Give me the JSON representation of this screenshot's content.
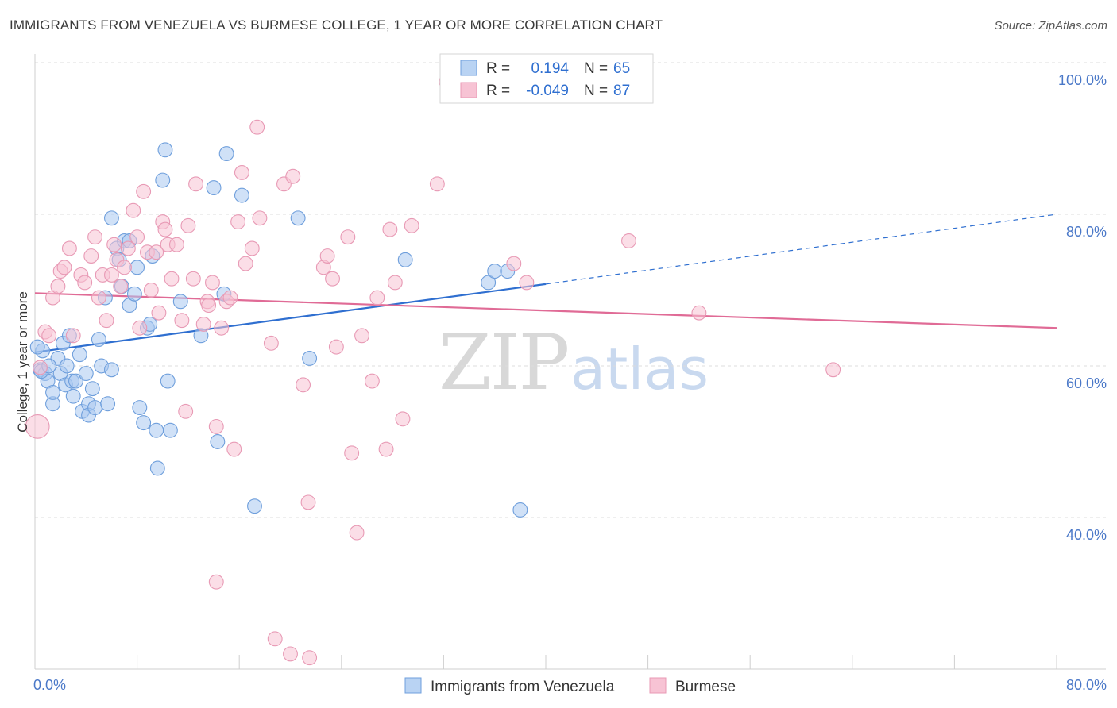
{
  "chart_data": {
    "type": "scatter",
    "title": "IMMIGRANTS FROM VENEZUELA VS BURMESE COLLEGE, 1 YEAR OR MORE CORRELATION CHART",
    "source": "Source: ZipAtlas.com",
    "xlabel": "",
    "ylabel": "College, 1 year or more",
    "xlim": [
      0,
      80
    ],
    "ylim": [
      20,
      100
    ],
    "x_tick_labels": [
      "0.0%",
      "80.0%"
    ],
    "y_tick_labels": [
      {
        "value": 100,
        "label": "100.0%"
      },
      {
        "value": 80,
        "label": "80.0%"
      },
      {
        "value": 60,
        "label": "60.0%"
      },
      {
        "value": 40,
        "label": "40.0%"
      }
    ],
    "legend_stats": [
      {
        "r_label": "R =",
        "r": "0.194",
        "n_label": "N =",
        "n": "65"
      },
      {
        "r_label": "R =",
        "r": "-0.049",
        "n_label": "N =",
        "n": "87"
      }
    ],
    "watermark": {
      "zip": "ZIP",
      "atlas": "atlas"
    },
    "series": [
      {
        "name": "Immigrants from Venezuela",
        "color": "#6f9fdc",
        "fill": "#a9c8f0",
        "trend": {
          "x0": 0,
          "y0": 61.8,
          "x1": 40,
          "y1": 70.8,
          "dash_to_x": 80,
          "dash_to_y": 80.0,
          "color": "#2f6fd0"
        },
        "points": [
          [
            0.4,
            59.5
          ],
          [
            0.6,
            62
          ],
          [
            0.8,
            59
          ],
          [
            1,
            58
          ],
          [
            1.4,
            55
          ],
          [
            1.4,
            56.5
          ],
          [
            1.8,
            61
          ],
          [
            2,
            59
          ],
          [
            2.2,
            63
          ],
          [
            2.4,
            57.5
          ],
          [
            2.7,
            64
          ],
          [
            2.9,
            58
          ],
          [
            3,
            56
          ],
          [
            3.2,
            58
          ],
          [
            3.5,
            61.5
          ],
          [
            3.7,
            54
          ],
          [
            4,
            59
          ],
          [
            4.2,
            55
          ],
          [
            4.2,
            53.5
          ],
          [
            4.5,
            57
          ],
          [
            4.7,
            54.5
          ],
          [
            5,
            63.5
          ],
          [
            5.2,
            60
          ],
          [
            5.5,
            69
          ],
          [
            5.7,
            55
          ],
          [
            6,
            59.5
          ],
          [
            6,
            79.5
          ],
          [
            6.4,
            75.5
          ],
          [
            6.6,
            74
          ],
          [
            6.8,
            70.5
          ],
          [
            7,
            76.5
          ],
          [
            7.4,
            76.5
          ],
          [
            7.4,
            68
          ],
          [
            7.8,
            69.5
          ],
          [
            8,
            73
          ],
          [
            8.2,
            54.5
          ],
          [
            8.5,
            52.5
          ],
          [
            8.8,
            65
          ],
          [
            9,
            65.5
          ],
          [
            9.2,
            74.5
          ],
          [
            9.5,
            51.5
          ],
          [
            9.6,
            46.5
          ],
          [
            10,
            84.5
          ],
          [
            10.2,
            88.5
          ],
          [
            10.6,
            51.5
          ],
          [
            10.4,
            58
          ],
          [
            11.4,
            68.5
          ],
          [
            13,
            64
          ],
          [
            14,
            83.5
          ],
          [
            14.3,
            50
          ],
          [
            14.8,
            69.5
          ],
          [
            15,
            88
          ],
          [
            16.2,
            82.5
          ],
          [
            17.2,
            41.5
          ],
          [
            20.6,
            79.5
          ],
          [
            21.5,
            61
          ],
          [
            29,
            74
          ],
          [
            35.5,
            71
          ],
          [
            36,
            72.5
          ],
          [
            37,
            72.5
          ],
          [
            38,
            41
          ],
          [
            0.2,
            62.5
          ],
          [
            0.5,
            59.3
          ],
          [
            1.1,
            60
          ],
          [
            2.5,
            60
          ]
        ],
        "sizes": [
          12,
          12,
          12,
          12,
          12,
          12,
          12,
          12,
          12,
          12,
          12,
          12,
          12,
          12,
          12,
          12,
          12,
          12,
          12,
          12,
          12,
          12,
          12,
          12,
          12,
          12,
          12,
          12,
          12,
          12,
          12,
          12,
          12,
          12,
          12,
          12,
          12,
          12,
          12,
          12,
          12,
          12,
          12,
          12,
          12,
          12,
          12,
          12,
          12,
          12,
          12,
          12,
          12,
          12,
          12,
          12,
          12,
          12,
          12,
          12,
          12,
          12,
          12,
          12,
          12
        ]
      },
      {
        "name": "Burmese",
        "color": "#e89ab5",
        "fill": "#f7c3d4",
        "trend": {
          "x0": 0,
          "y0": 69.6,
          "x1": 80,
          "y1": 65.0,
          "color": "#e06b96"
        },
        "points": [
          [
            0.2,
            52
          ],
          [
            0.4,
            59.8
          ],
          [
            0.8,
            64.5
          ],
          [
            1.1,
            64
          ],
          [
            1.4,
            69
          ],
          [
            1.8,
            70.5
          ],
          [
            2,
            72.5
          ],
          [
            2.3,
            73
          ],
          [
            2.7,
            75.5
          ],
          [
            3,
            64
          ],
          [
            3.6,
            72
          ],
          [
            3.9,
            71
          ],
          [
            4.4,
            74.5
          ],
          [
            4.7,
            77
          ],
          [
            5,
            69
          ],
          [
            5.3,
            72
          ],
          [
            5.6,
            66
          ],
          [
            6,
            72
          ],
          [
            6.2,
            76
          ],
          [
            6.4,
            74
          ],
          [
            6.7,
            70.5
          ],
          [
            7,
            73
          ],
          [
            7.3,
            75.5
          ],
          [
            7.7,
            80.5
          ],
          [
            8,
            77
          ],
          [
            8.2,
            65
          ],
          [
            8.5,
            83
          ],
          [
            8.8,
            75
          ],
          [
            9.1,
            70
          ],
          [
            9.5,
            75
          ],
          [
            9.7,
            67
          ],
          [
            10,
            79
          ],
          [
            10.2,
            78
          ],
          [
            10.4,
            76
          ],
          [
            10.7,
            71.5
          ],
          [
            11.1,
            76
          ],
          [
            11.5,
            66
          ],
          [
            12,
            78.5
          ],
          [
            11.8,
            54
          ],
          [
            12.4,
            71.5
          ],
          [
            12.6,
            84
          ],
          [
            13.2,
            65.5
          ],
          [
            13.5,
            68.5
          ],
          [
            13.6,
            68
          ],
          [
            13.9,
            71
          ],
          [
            14.2,
            52
          ],
          [
            14.6,
            65
          ],
          [
            15,
            68.5
          ],
          [
            15.3,
            69
          ],
          [
            15.6,
            49
          ],
          [
            15.9,
            79
          ],
          [
            16.2,
            85.5
          ],
          [
            16.5,
            73.5
          ],
          [
            17,
            75.5
          ],
          [
            17.4,
            91.5
          ],
          [
            17.6,
            79.5
          ],
          [
            18.5,
            63
          ],
          [
            19.5,
            84
          ],
          [
            20.2,
            85
          ],
          [
            21,
            57.5
          ],
          [
            21.4,
            42
          ],
          [
            22.6,
            73
          ],
          [
            22.9,
            74.5
          ],
          [
            23.3,
            71.5
          ],
          [
            23.6,
            62.5
          ],
          [
            24.5,
            77
          ],
          [
            24.8,
            48.5
          ],
          [
            25.2,
            38
          ],
          [
            25.6,
            64
          ],
          [
            26.4,
            58
          ],
          [
            26.8,
            69
          ],
          [
            27.5,
            49
          ],
          [
            27.8,
            78
          ],
          [
            28.2,
            71
          ],
          [
            28.8,
            53
          ],
          [
            29.5,
            78.5
          ],
          [
            31.5,
            84
          ],
          [
            32.2,
            97.5
          ],
          [
            37.5,
            73.5
          ],
          [
            38.5,
            71
          ],
          [
            46.5,
            76.5
          ],
          [
            52,
            67
          ],
          [
            62.5,
            59.5
          ],
          [
            14.2,
            31.5
          ],
          [
            18.8,
            24
          ],
          [
            20,
            22
          ],
          [
            21.5,
            21.5
          ]
        ],
        "sizes": [
          20,
          12,
          12,
          12,
          12,
          12,
          12,
          12,
          12,
          12,
          12,
          12,
          12,
          12,
          12,
          12,
          12,
          12,
          12,
          12,
          12,
          12,
          12,
          12,
          12,
          12,
          12,
          12,
          12,
          12,
          12,
          12,
          12,
          12,
          12,
          12,
          12,
          12,
          12,
          12,
          12,
          12,
          12,
          12,
          12,
          12,
          12,
          12,
          12,
          12,
          12,
          12,
          12,
          12,
          12,
          12,
          12,
          12,
          12,
          12,
          12,
          12,
          12,
          12,
          12,
          12,
          12,
          12,
          12,
          12,
          12,
          12,
          12,
          12,
          12,
          12,
          12,
          12,
          12,
          12,
          12,
          12,
          12,
          12,
          12,
          12,
          12
        ]
      }
    ]
  }
}
